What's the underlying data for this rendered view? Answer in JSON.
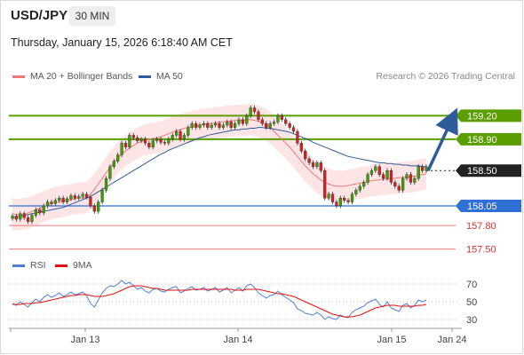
{
  "header": {
    "symbol": "USD/JPY",
    "timeframe": "30 MIN",
    "datetime": "Thursday, January 15, 2026 6:18:40 AM CET"
  },
  "legend": {
    "ma20_label": "MA 20 + Bollinger Bands",
    "ma50_label": "MA 50",
    "credit": "Research © 2026 Trading Central",
    "rsi_label": "RSI",
    "ma9_label": "9MA"
  },
  "colors": {
    "resistance": "#5a9e00",
    "current": "#222222",
    "pivot": "#2f6fd6",
    "support": "#f07a7a",
    "candle_up": "#3fa000",
    "candle_down": "#d82020",
    "ma20": "#f07a7a",
    "ma50": "#2f5b9a",
    "band": "#fde0e0",
    "arrow": "#2f5b9a",
    "rsi": "#4f7fd8",
    "ma9": "#e01010"
  },
  "chart_data": [
    {
      "type": "candlestick",
      "x_ticks": [
        "Jan 13",
        "Jan 14",
        "Jan 15",
        "Jan 24"
      ],
      "y_range": [
        157.45,
        159.6
      ],
      "levels": [
        {
          "value": 159.2,
          "label": "159.20",
          "kind": "resistance"
        },
        {
          "value": 158.9,
          "label": "158.90",
          "kind": "resistance"
        },
        {
          "value": 158.5,
          "label": "158.50",
          "kind": "current"
        },
        {
          "value": 158.05,
          "label": "158.05",
          "kind": "pivot"
        },
        {
          "value": 157.8,
          "label": "157.80",
          "kind": "support"
        },
        {
          "value": 157.5,
          "label": "157.50",
          "kind": "support"
        }
      ],
      "close": [
        157.92,
        157.88,
        157.95,
        157.9,
        157.85,
        157.93,
        158.0,
        157.96,
        158.05,
        158.1,
        158.08,
        158.12,
        158.15,
        158.1,
        158.14,
        158.18,
        158.15,
        158.17,
        158.2,
        158.16,
        158.05,
        157.98,
        158.1,
        158.25,
        158.4,
        158.55,
        158.62,
        158.7,
        158.85,
        158.8,
        158.95,
        158.92,
        158.88,
        158.9,
        158.85,
        158.8,
        158.88,
        158.9,
        158.86,
        158.85,
        158.9,
        158.95,
        159.0,
        158.9,
        158.95,
        159.05,
        159.1,
        159.05,
        159.08,
        159.1,
        159.05,
        159.08,
        159.1,
        159.05,
        159.08,
        159.12,
        159.05,
        159.1,
        159.15,
        159.1,
        159.2,
        159.3,
        159.25,
        159.15,
        159.1,
        159.05,
        159.1,
        159.12,
        159.2,
        159.15,
        159.1,
        159.05,
        159.0,
        158.85,
        158.75,
        158.65,
        158.6,
        158.55,
        158.6,
        158.5,
        158.15,
        158.2,
        158.1,
        158.05,
        158.15,
        158.12,
        158.1,
        158.2,
        158.25,
        158.3,
        158.35,
        158.45,
        158.5,
        158.55,
        158.45,
        158.4,
        158.5,
        158.35,
        158.3,
        158.25,
        158.4,
        158.45,
        158.35,
        158.4,
        158.55,
        158.5,
        158.55
      ],
      "ma20": [
        157.95,
        157.94,
        157.94,
        157.95,
        157.96,
        157.98,
        158.0,
        158.02,
        158.04,
        158.06,
        158.08,
        158.09,
        158.1,
        158.11,
        158.12,
        158.13,
        158.14,
        158.15,
        158.15,
        158.16,
        158.2,
        158.26,
        158.33,
        158.4,
        158.47,
        158.54,
        158.6,
        158.66,
        158.71,
        158.75,
        158.79,
        158.82,
        158.85,
        158.87,
        158.89,
        158.9,
        158.91,
        158.92,
        158.93,
        158.95,
        158.97,
        158.99,
        159.01,
        159.02,
        159.04,
        159.05,
        159.06,
        159.07,
        159.08,
        159.09,
        159.1,
        159.1,
        159.11,
        159.12,
        159.12,
        159.13,
        159.13,
        159.14,
        159.14,
        159.14,
        159.15,
        159.15,
        159.14,
        159.13,
        159.11,
        159.08,
        159.05,
        159.0,
        158.95,
        158.9,
        158.85,
        158.8,
        158.74,
        158.68,
        158.62,
        158.56,
        158.51,
        158.46,
        158.42,
        158.38,
        158.35,
        158.33,
        158.31,
        158.3,
        158.3,
        158.3,
        158.31,
        158.32,
        158.33,
        158.34,
        158.35,
        158.36,
        158.37,
        158.38,
        158.38,
        158.39,
        158.39,
        158.4,
        158.4,
        158.41,
        158.41,
        158.42,
        158.42,
        158.43,
        158.44,
        158.45,
        158.46
      ],
      "ma50": [
        157.9,
        157.91,
        157.92,
        157.93,
        157.94,
        157.95,
        157.96,
        157.97,
        157.98,
        157.99,
        158.0,
        158.01,
        158.02,
        158.03,
        158.05,
        158.07,
        158.09,
        158.11,
        158.13,
        158.15,
        158.17,
        158.2,
        158.23,
        158.26,
        158.29,
        158.32,
        158.35,
        158.38,
        158.41,
        158.44,
        158.47,
        158.5,
        158.53,
        158.56,
        158.59,
        158.62,
        158.65,
        158.68,
        158.71,
        158.73,
        158.76,
        158.78,
        158.8,
        158.82,
        158.84,
        158.86,
        158.88,
        158.9,
        158.92,
        158.93,
        158.95,
        158.96,
        158.97,
        158.98,
        158.99,
        159.0,
        159.01,
        159.02,
        159.02,
        159.03,
        159.03,
        159.04,
        159.04,
        159.05,
        159.05,
        159.04,
        159.04,
        159.03,
        159.02,
        159.01,
        159.0,
        158.99,
        158.97,
        158.95,
        158.93,
        158.91,
        158.89,
        158.86,
        158.84,
        158.82,
        158.8,
        158.78,
        158.76,
        158.74,
        158.72,
        158.7,
        158.68,
        158.67,
        158.66,
        158.65,
        158.64,
        158.63,
        158.62,
        158.61,
        158.6,
        158.6,
        158.59,
        158.59,
        158.58,
        158.58,
        158.57,
        158.57,
        158.56,
        158.56,
        158.56,
        158.55,
        158.55
      ],
      "band_width": 0.2,
      "forecast": {
        "from": 158.5,
        "to": 159.2
      }
    },
    {
      "type": "line",
      "name": "RSI",
      "y_ticks": [
        30,
        50,
        70
      ],
      "y_range": [
        20,
        80
      ],
      "rsi": [
        48,
        46,
        50,
        47,
        44,
        49,
        53,
        50,
        55,
        58,
        55,
        57,
        60,
        56,
        58,
        61,
        58,
        59,
        61,
        57,
        48,
        44,
        52,
        60,
        65,
        68,
        67,
        70,
        74,
        70,
        72,
        68,
        64,
        66,
        62,
        60,
        64,
        65,
        62,
        61,
        64,
        66,
        67,
        60,
        62,
        65,
        67,
        63,
        64,
        66,
        62,
        64,
        66,
        61,
        63,
        66,
        60,
        63,
        66,
        62,
        68,
        70,
        66,
        60,
        57,
        54,
        57,
        58,
        62,
        58,
        55,
        52,
        49,
        42,
        40,
        37,
        36,
        35,
        38,
        35,
        30,
        33,
        31,
        30,
        35,
        33,
        32,
        38,
        41,
        43,
        45,
        49,
        51,
        53,
        47,
        44,
        50,
        43,
        41,
        39,
        46,
        48,
        43,
        46,
        52,
        50,
        52
      ],
      "ma9": [
        47,
        47,
        47,
        48,
        48,
        48,
        49,
        49,
        50,
        51,
        52,
        53,
        54,
        55,
        56,
        57,
        57,
        58,
        58,
        58,
        57,
        56,
        56,
        56,
        57,
        58,
        59,
        61,
        63,
        65,
        67,
        68,
        68,
        68,
        67,
        66,
        65,
        65,
        64,
        63,
        63,
        63,
        63,
        63,
        63,
        63,
        64,
        64,
        64,
        64,
        64,
        64,
        64,
        64,
        64,
        64,
        64,
        63,
        63,
        63,
        64,
        64,
        64,
        64,
        63,
        62,
        61,
        60,
        59,
        59,
        58,
        57,
        56,
        54,
        52,
        50,
        48,
        46,
        44,
        42,
        40,
        38,
        36,
        35,
        34,
        33,
        33,
        33,
        34,
        35,
        37,
        39,
        41,
        43,
        44,
        45,
        46,
        46,
        46,
        45,
        45,
        45,
        45,
        45,
        46,
        46,
        47
      ]
    }
  ]
}
